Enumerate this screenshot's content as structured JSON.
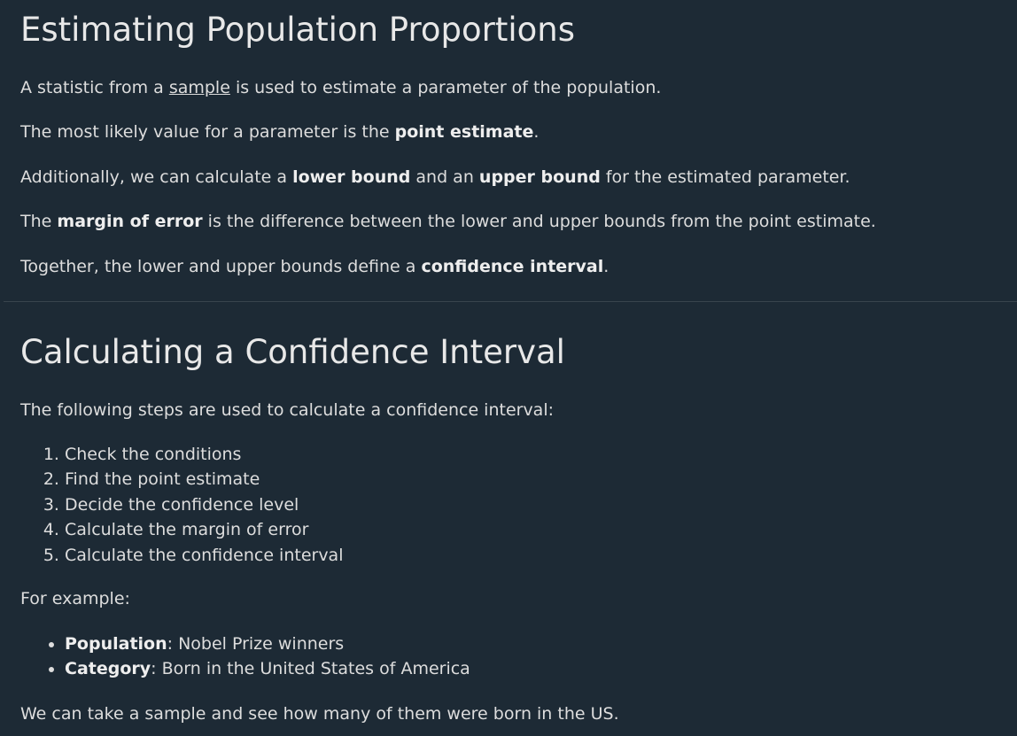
{
  "section1": {
    "title": "Estimating Population Proportions",
    "p1": {
      "before": "A statistic from a ",
      "link": "sample",
      "after": " is used to estimate a parameter of the population."
    },
    "p2": {
      "before": "The most likely value for a parameter is the ",
      "bold": "point estimate",
      "after": "."
    },
    "p3": {
      "before": "Additionally, we can calculate a ",
      "bold1": "lower bound",
      "mid": " and an ",
      "bold2": "upper bound",
      "after": " for the estimated parameter."
    },
    "p4": {
      "before": "The ",
      "bold": "margin of error",
      "after": " is the difference between the lower and upper bounds from the point estimate."
    },
    "p5": {
      "before": "Together, the lower and upper bounds define a ",
      "bold": "confidence interval",
      "after": "."
    }
  },
  "section2": {
    "title": "Calculating a Confidence Interval",
    "intro": "The following steps are used to calculate a confidence interval:",
    "steps": [
      "Check the conditions",
      "Find the point estimate",
      "Decide the confidence level",
      "Calculate the margin of error",
      "Calculate the confidence interval"
    ],
    "example_label": "For example:",
    "bullets": [
      {
        "label": "Population",
        "text": ": Nobel Prize winners"
      },
      {
        "label": "Category",
        "text": ": Born in the United States of America"
      }
    ],
    "closing": "We can take a sample and see how many of them were born in the US."
  }
}
